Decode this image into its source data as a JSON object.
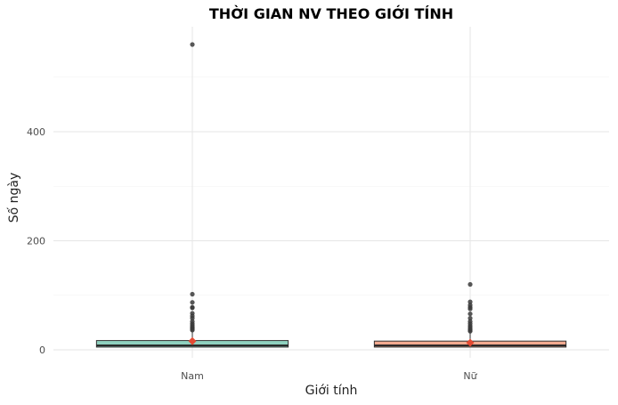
{
  "chart_data": {
    "type": "box",
    "title": "THỜI GIAN NV THEO GIỚI TÍNH",
    "xlabel": "Giới tính",
    "ylabel": "Số ngày",
    "ylim": [
      -5,
      590
    ],
    "yticks": [
      0,
      200,
      400
    ],
    "grid": true,
    "categories": [
      "Nam",
      "Nữ"
    ],
    "boxes": [
      {
        "category": "Nam",
        "min": 5,
        "q1": 5,
        "median": 8,
        "q3": 17,
        "max": 35,
        "mean": 16,
        "fill": "#8fd1bf",
        "outliers": [
          560,
          102,
          87,
          78,
          77,
          67,
          62,
          58,
          52,
          48,
          45,
          42,
          40,
          38,
          36
        ]
      },
      {
        "category": "Nữ",
        "min": 5,
        "q1": 5,
        "median": 8,
        "q3": 16,
        "max": 32,
        "mean": 13,
        "fill": "#f2a98f",
        "outliers": [
          120,
          88,
          82,
          78,
          75,
          66,
          58,
          52,
          48,
          44,
          41,
          38,
          36,
          34
        ]
      }
    ],
    "mean_color": "#e34a33"
  }
}
